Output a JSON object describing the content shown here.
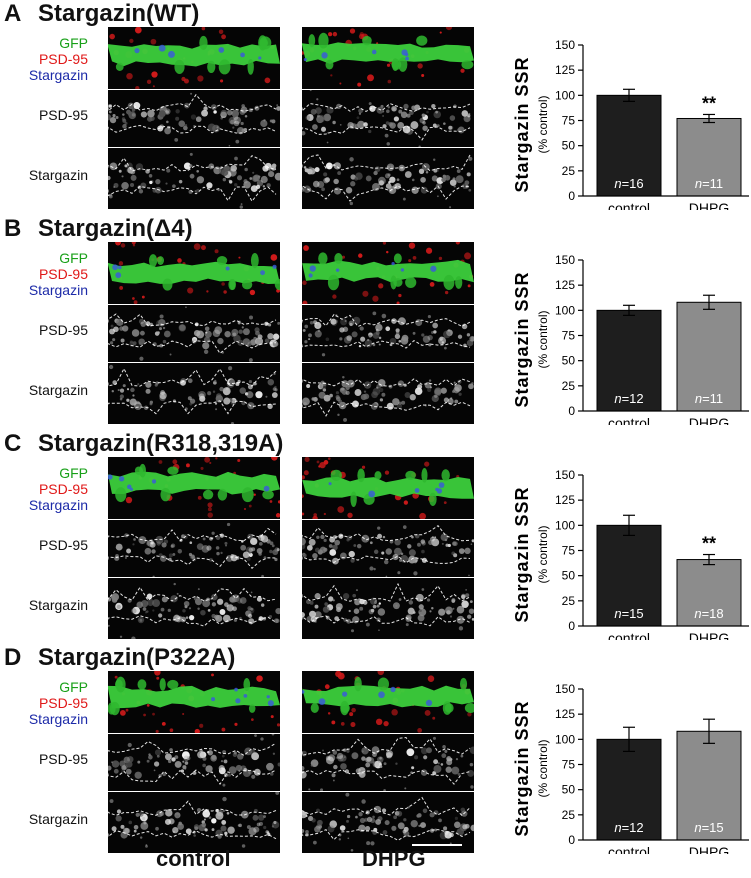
{
  "labels": {
    "gfp": "GFP",
    "psd95": "PSD-95",
    "stargazin": "Stargazin",
    "control": "control",
    "dhpg": "DHPG"
  },
  "panels": [
    {
      "letter": "A",
      "title": "Stargazin(WT)"
    },
    {
      "letter": "B",
      "title": "Stargazin(Δ4)"
    },
    {
      "letter": "C",
      "title": "Stargazin(R318,319A)"
    },
    {
      "letter": "D",
      "title": "Stargazin(P322A)"
    }
  ],
  "colors": {
    "control_bar": "#1e1e1e",
    "dhpg_bar": "#8c8c8c",
    "gfp": "#18a018",
    "psd95": "#e01818",
    "stargazin": "#1c2aa8"
  },
  "chart_data": [
    {
      "type": "bar",
      "panel": "A",
      "ylabel": "Stargazin SSR",
      "ylabel_sub": "(% control)",
      "categories": [
        "control",
        "DHPG"
      ],
      "values": [
        100,
        77
      ],
      "errors": [
        6,
        4
      ],
      "n_labels": [
        "16",
        "11"
      ],
      "significance": [
        "",
        "**"
      ],
      "yticks": [
        0,
        25,
        50,
        75,
        100,
        125,
        150
      ],
      "ylim": [
        0,
        150
      ]
    },
    {
      "type": "bar",
      "panel": "B",
      "ylabel": "Stargazin SSR",
      "ylabel_sub": "(% control)",
      "categories": [
        "control",
        "DHPG"
      ],
      "values": [
        100,
        108
      ],
      "errors": [
        5,
        7
      ],
      "n_labels": [
        "12",
        "11"
      ],
      "significance": [
        "",
        ""
      ],
      "yticks": [
        0,
        25,
        50,
        75,
        100,
        125,
        150
      ],
      "ylim": [
        0,
        150
      ]
    },
    {
      "type": "bar",
      "panel": "C",
      "ylabel": "Stargazin SSR",
      "ylabel_sub": "(% control)",
      "categories": [
        "control",
        "DHPG"
      ],
      "values": [
        100,
        66
      ],
      "errors": [
        10,
        5
      ],
      "n_labels": [
        "15",
        "18"
      ],
      "significance": [
        "",
        "**"
      ],
      "yticks": [
        0,
        25,
        50,
        75,
        100,
        125,
        150
      ],
      "ylim": [
        0,
        150
      ]
    },
    {
      "type": "bar",
      "panel": "D",
      "ylabel": "Stargazin SSR",
      "ylabel_sub": "(% control)",
      "categories": [
        "control",
        "DHPG"
      ],
      "values": [
        100,
        108
      ],
      "errors": [
        12,
        12
      ],
      "n_labels": [
        "12",
        "15"
      ],
      "significance": [
        "",
        ""
      ],
      "yticks": [
        0,
        25,
        50,
        75,
        100,
        125,
        150
      ],
      "ylim": [
        0,
        150
      ]
    }
  ]
}
